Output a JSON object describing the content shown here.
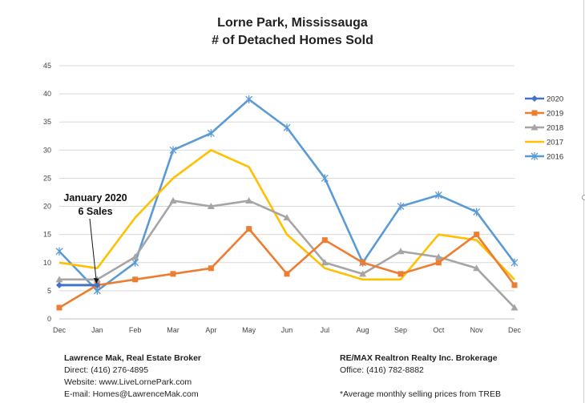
{
  "chart_data": {
    "type": "line",
    "title_line1": "Lorne Park, Mississauga",
    "title_line2": "# of Detached Homes Sold",
    "categories": [
      "Dec",
      "Jan",
      "Feb",
      "Mar",
      "Apr",
      "May",
      "Jun",
      "Jul",
      "Aug",
      "Sep",
      "Oct",
      "Nov",
      "Dec"
    ],
    "yticks": [
      "0",
      "5",
      "10",
      "15",
      "20",
      "25",
      "30",
      "35",
      "40",
      "45"
    ],
    "ylim": [
      0,
      45
    ],
    "grid": true,
    "legend_position": "right",
    "series": [
      {
        "name": "2020",
        "color": "#4472C4",
        "marker": "diamond",
        "values": [
          6,
          6,
          null,
          null,
          null,
          null,
          null,
          null,
          null,
          null,
          null,
          null,
          null
        ]
      },
      {
        "name": "2019",
        "color": "#ED7D31",
        "marker": "square",
        "values": [
          2,
          6,
          7,
          8,
          9,
          16,
          8,
          14,
          10,
          8,
          10,
          15,
          6
        ]
      },
      {
        "name": "2018",
        "color": "#A5A5A5",
        "marker": "triangle",
        "values": [
          7,
          7,
          11,
          21,
          20,
          21,
          18,
          10,
          8,
          12,
          11,
          9,
          2
        ]
      },
      {
        "name": "2017",
        "color": "#FFC000",
        "marker": "none",
        "values": [
          10,
          9,
          18,
          25,
          30,
          27,
          15,
          9,
          7,
          7,
          15,
          14,
          7
        ]
      },
      {
        "name": "2016",
        "color": "#5B9BD5",
        "marker": "star",
        "values": [
          12,
          5,
          10,
          30,
          33,
          39,
          34,
          25,
          10,
          20,
          22,
          19,
          10
        ]
      }
    ],
    "annotation": {
      "line1": "January 2020",
      "line2": "6 Sales"
    }
  },
  "footer": {
    "left_name": "Lawrence Mak, Real Estate Broker",
    "left_phone": "Direct:  (416) 276-4895",
    "left_web": "Website:  www.LiveLornePark.com",
    "left_email": "E-mail:  Homes@LawrenceMak.com",
    "right_name": "RE/MAX Realtron Realty Inc. Brokerage",
    "right_office": "Office: (416) 782-8882",
    "right_note": "*Average monthly selling prices from TREB"
  }
}
